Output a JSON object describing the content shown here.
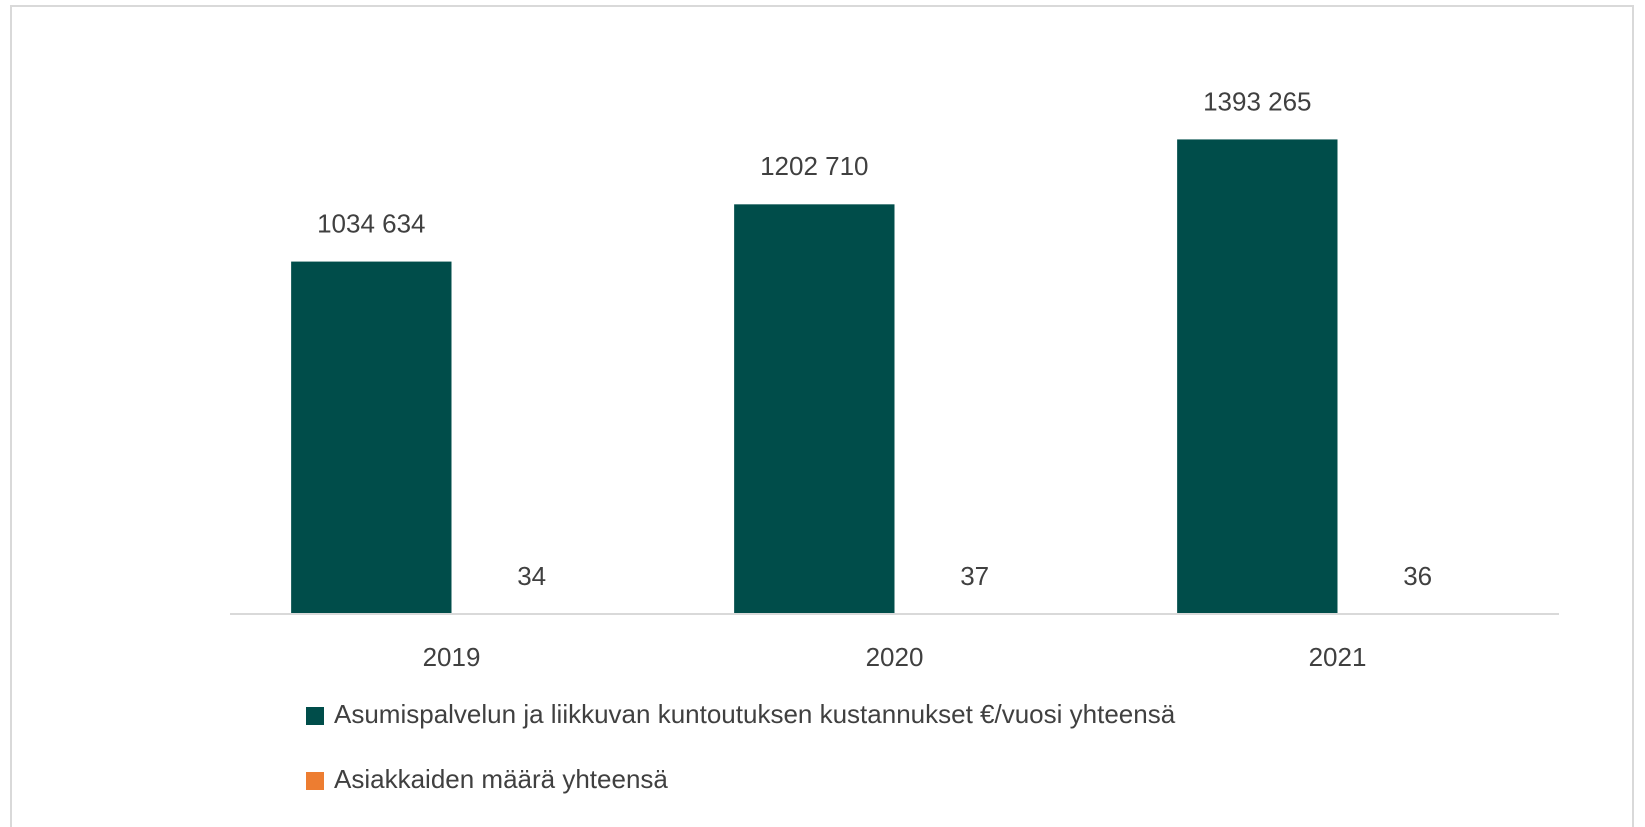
{
  "chart_data": {
    "type": "bar",
    "categories": [
      "2019",
      "2020",
      "2021"
    ],
    "series": [
      {
        "name": "Asumispalvelun ja liikkuvan kuntoutuksen kustannukset €/vuosi yhteensä",
        "color": "#004d4a",
        "values": [
          1034634,
          1202710,
          1393265
        ],
        "value_labels": [
          "1034 634",
          "1202 710",
          "1393 265"
        ]
      },
      {
        "name": "Asiakkaiden määrä yhteensä",
        "color": "#ed7d31",
        "values": [
          34,
          37,
          36
        ]
      }
    ],
    "ylim": [
      0,
      1600000
    ]
  }
}
